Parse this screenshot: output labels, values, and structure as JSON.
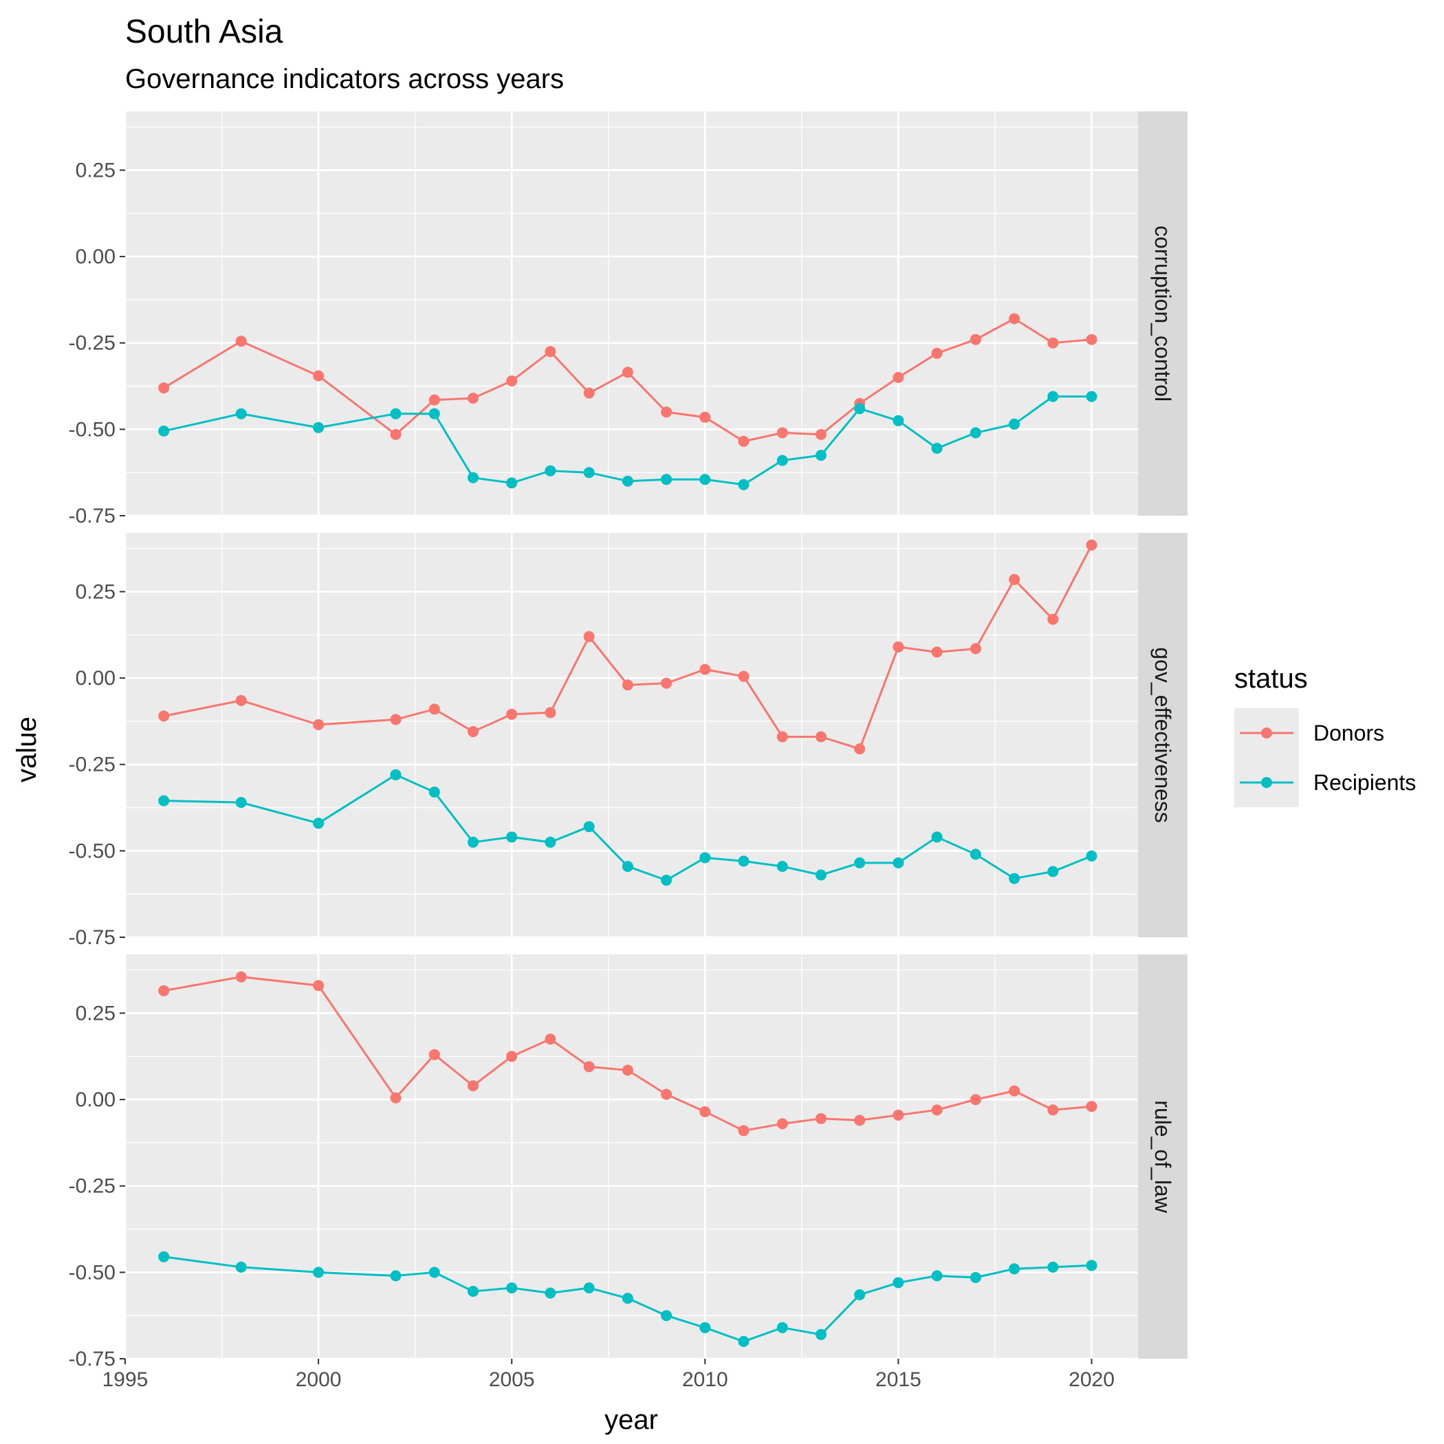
{
  "chart_data": {
    "type": "line",
    "title": "South Asia",
    "subtitle": "Governance indicators across years",
    "xlabel": "year",
    "ylabel": "value",
    "xlim": [
      1995,
      2021.2
    ],
    "ylim": [
      -0.75,
      0.42
    ],
    "x_ticks": [
      1995,
      2000,
      2005,
      2010,
      2015,
      2020
    ],
    "y_ticks": [
      -0.75,
      -0.5,
      -0.25,
      0.0,
      0.25
    ],
    "y_tick_labels": [
      "-0.75",
      "-0.50",
      "-0.25",
      "0.00",
      "0.25"
    ],
    "x_tick_labels": [
      "1995",
      "2000",
      "2005",
      "2010",
      "2015",
      "2020"
    ],
    "grid": true,
    "legend": {
      "title": "status",
      "position": "right",
      "entries": [
        "Donors",
        "Recipients"
      ]
    },
    "colors": {
      "Donors": "#F8766D",
      "Recipients": "#00BFC4",
      "panel_bg": "#EBEBEB",
      "strip_bg": "#D9D9D9"
    },
    "x": [
      1996,
      1998,
      2000,
      2002,
      2003,
      2004,
      2005,
      2006,
      2007,
      2008,
      2009,
      2010,
      2011,
      2012,
      2013,
      2014,
      2015,
      2016,
      2017,
      2018,
      2019,
      2020
    ],
    "facets": [
      {
        "name": "corruption_control",
        "series": [
          {
            "name": "Donors",
            "values": [
              -0.38,
              -0.245,
              -0.345,
              -0.515,
              -0.415,
              -0.41,
              -0.36,
              -0.275,
              -0.395,
              -0.335,
              -0.45,
              -0.465,
              -0.535,
              -0.51,
              -0.515,
              -0.425,
              -0.35,
              -0.28,
              -0.24,
              -0.18,
              -0.25,
              -0.24
            ]
          },
          {
            "name": "Recipients",
            "values": [
              -0.505,
              -0.455,
              -0.495,
              -0.455,
              -0.455,
              -0.64,
              -0.655,
              -0.62,
              -0.625,
              -0.65,
              -0.645,
              -0.645,
              -0.66,
              -0.59,
              -0.575,
              -0.44,
              -0.475,
              -0.555,
              -0.51,
              -0.485,
              -0.405,
              -0.405
            ]
          }
        ]
      },
      {
        "name": "gov_effectiveness",
        "series": [
          {
            "name": "Donors",
            "values": [
              -0.11,
              -0.065,
              -0.135,
              -0.12,
              -0.09,
              -0.155,
              -0.105,
              -0.1,
              0.12,
              -0.02,
              -0.015,
              0.025,
              0.005,
              -0.17,
              -0.17,
              -0.205,
              0.09,
              0.075,
              0.085,
              0.285,
              0.17,
              0.385
            ]
          },
          {
            "name": "Recipients",
            "values": [
              -0.355,
              -0.36,
              -0.42,
              -0.28,
              -0.33,
              -0.475,
              -0.46,
              -0.475,
              -0.43,
              -0.545,
              -0.585,
              -0.52,
              -0.53,
              -0.545,
              -0.57,
              -0.535,
              -0.535,
              -0.46,
              -0.51,
              -0.58,
              -0.56,
              -0.515
            ]
          }
        ]
      },
      {
        "name": "rule_of_law",
        "series": [
          {
            "name": "Donors",
            "values": [
              0.315,
              0.355,
              0.33,
              0.005,
              0.13,
              0.04,
              0.125,
              0.175,
              0.095,
              0.085,
              0.015,
              -0.035,
              -0.09,
              -0.07,
              -0.055,
              -0.06,
              -0.045,
              -0.03,
              -0.0,
              0.025,
              -0.03,
              -0.02
            ]
          },
          {
            "name": "Recipients",
            "values": [
              -0.455,
              -0.485,
              -0.5,
              -0.51,
              -0.5,
              -0.555,
              -0.545,
              -0.56,
              -0.545,
              -0.575,
              -0.625,
              -0.66,
              -0.7,
              -0.66,
              -0.68,
              -0.565,
              -0.53,
              -0.51,
              -0.515,
              -0.49,
              -0.485,
              -0.48
            ]
          }
        ]
      }
    ]
  }
}
